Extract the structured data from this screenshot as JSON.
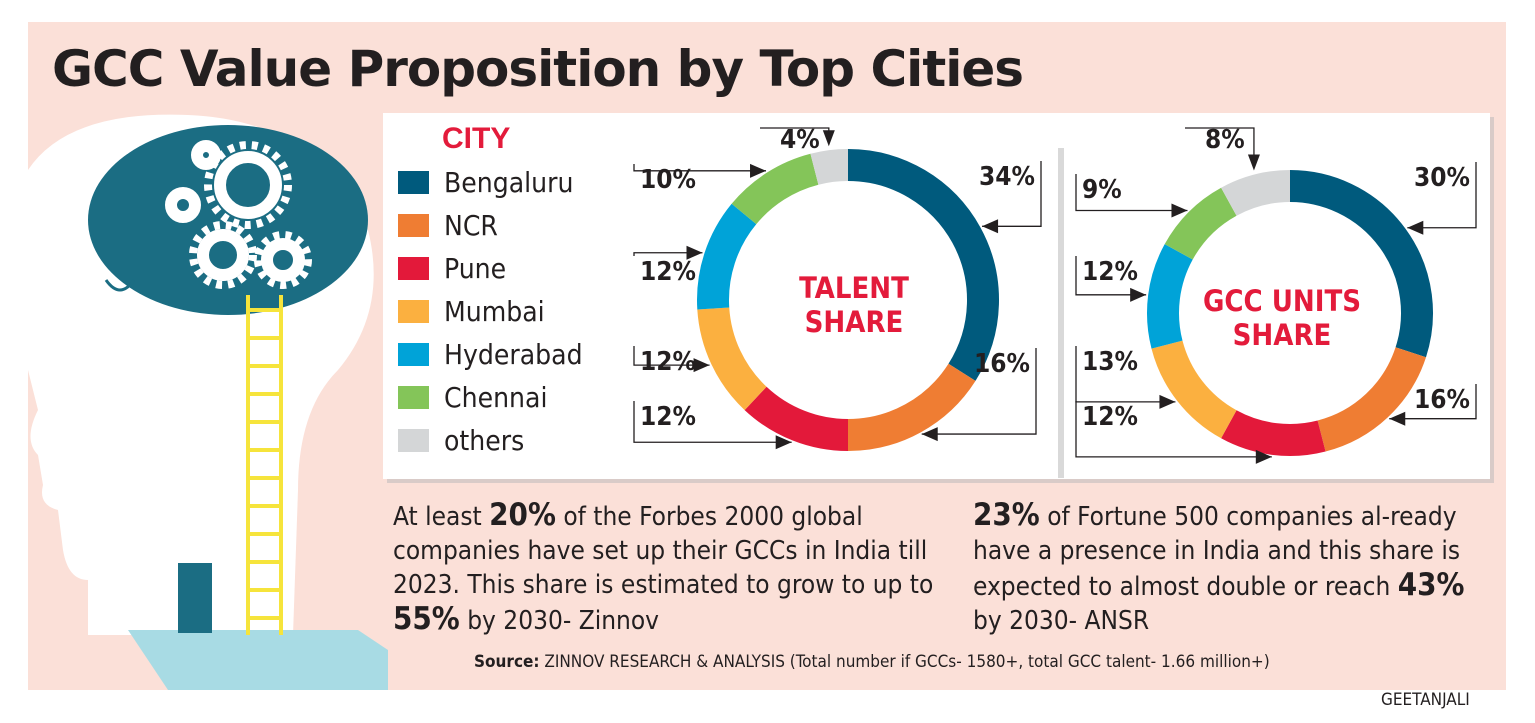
{
  "title": "GCC Value Proposition by Top Cities",
  "legend_title": "CITY",
  "colors": {
    "Bengaluru": "#005a7d",
    "NCR": "#ef7d33",
    "Pune": "#e3193a",
    "Mumbai": "#fbb040",
    "Hyderabad": "#00a3d8",
    "Chennai": "#84c559",
    "others": "#d4d6d7",
    "accent": "#e31b3b",
    "background": "#fbe0d8"
  },
  "chart_data": [
    {
      "type": "pie",
      "donut": true,
      "title": "TALENT SHARE",
      "title_lines": [
        "TALENT",
        "SHARE"
      ],
      "categories": [
        "Bengaluru",
        "NCR",
        "Pune",
        "Mumbai",
        "Hyderabad",
        "Chennai",
        "others"
      ],
      "values": [
        34,
        16,
        12,
        12,
        12,
        10,
        4
      ],
      "labels": [
        "34%",
        "16%",
        "12%",
        "12%",
        "12%",
        "10%",
        "4%"
      ]
    },
    {
      "type": "pie",
      "donut": true,
      "title": "GCC UNITS SHARE",
      "title_lines": [
        "GCC UNITS",
        "SHARE"
      ],
      "categories": [
        "Bengaluru",
        "NCR",
        "Pune",
        "Mumbai",
        "Hyderabad",
        "Chennai",
        "others"
      ],
      "values": [
        30,
        16,
        12,
        13,
        12,
        9,
        8
      ],
      "labels": [
        "30%",
        "16%",
        "12%",
        "13%",
        "12%",
        "9%",
        "8%"
      ]
    }
  ],
  "text_left": {
    "p1": "At least ",
    "b1": "20%",
    "p2": " of the Forbes 2000 global companies have set up their GCCs in India till 2023. This share is estimated to grow to up to ",
    "b2": "55%",
    "p3": " by 2030- Zinnov"
  },
  "text_right": {
    "b1": "23%",
    "p1": " of Fortune 500 companies al-ready have a presence in India and this share is expected to almost double or reach ",
    "b2": "43%",
    "p2": " by 2030- ANSR"
  },
  "source_label": "Source:",
  "source_text": " ZINNOV RESEARCH & ANALYSIS  (Total number if GCCs- 1580+, total GCC talent- 1.66 million+)",
  "credit": "GEETANJALI"
}
